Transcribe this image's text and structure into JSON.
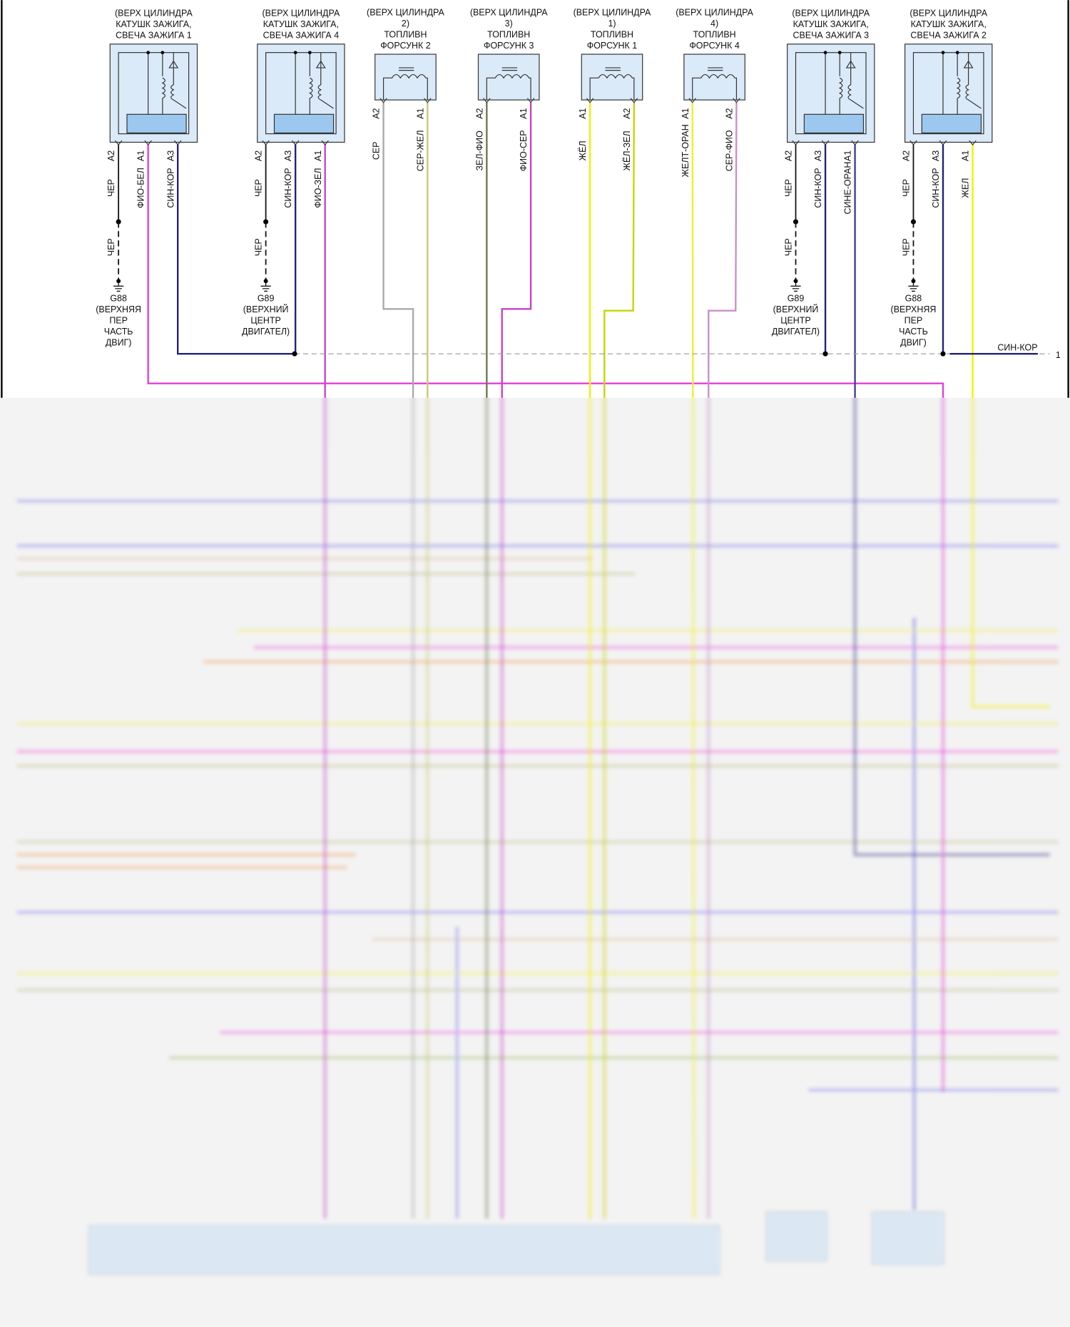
{
  "components": [
    {
      "kind": "coil",
      "title": [
        "(ВЕРХ ЦИЛИНДРА",
        "КАТУШК ЗАЖИГА,",
        "СВЕЧА ЗАЖИГА 1"
      ],
      "pins": [
        {
          "pin": "A2",
          "wire": "ЧЕР",
          "color": "#111111"
        },
        {
          "pin": "A1",
          "wire": "ФИО-БЕЛ",
          "color": "#e040d8"
        },
        {
          "pin": "A3",
          "wire": "СИН-КОР",
          "color": "#22227a"
        }
      ]
    },
    {
      "kind": "coil",
      "title": [
        "(ВЕРХ ЦИЛИНДРА",
        "КАТУШК ЗАЖИГА,",
        "СВЕЧА ЗАЖИГА 4"
      ],
      "pins": [
        {
          "pin": "A2",
          "wire": "ЧЕР",
          "color": "#111111"
        },
        {
          "pin": "A3",
          "wire": "СИН-КОР",
          "color": "#22227a"
        },
        {
          "pin": "A1",
          "wire": "ФИО-ЗЕЛ",
          "color": "#c048c8"
        }
      ]
    },
    {
      "kind": "injector",
      "title": [
        "(ВЕРХ ЦИЛИНДРА",
        "2)",
        "ТОПЛИВН",
        "ФОРСУНК 2"
      ],
      "pins": [
        {
          "pin": "A2",
          "wire": "СЕР",
          "color": "#aaaaaa"
        },
        {
          "pin": "A1",
          "wire": "СЕР-ЖЕЛ",
          "color": "#c8c878"
        }
      ]
    },
    {
      "kind": "injector",
      "title": [
        "(ВЕРХ ЦИЛИНДРА",
        "3)",
        "ТОПЛИВН",
        "ФОРСУНК 3"
      ],
      "pins": [
        {
          "pin": "A2",
          "wire": "ЗЕЛ-ФИО",
          "color": "#6a7a50"
        },
        {
          "pin": "A1",
          "wire": "ФИО-СЕР",
          "color": "#c840c8"
        }
      ]
    },
    {
      "kind": "injector",
      "title": [
        "(ВЕРХ ЦИЛИНДРА",
        "1)",
        "ТОПЛИВН",
        "ФОРСУНК 1"
      ],
      "pins": [
        {
          "pin": "A1",
          "wire": "ЖЁЛ",
          "color": "#f0f000"
        },
        {
          "pin": "A2",
          "wire": "ЖЁЛ-ЗЕЛ",
          "color": "#c8d400"
        }
      ]
    },
    {
      "kind": "injector",
      "title": [
        "(ВЕРХ ЦИЛИНДРА",
        "4)",
        "ТОПЛИВН",
        "ФОРСУНК 4"
      ],
      "pins": [
        {
          "pin": "A1",
          "wire": "ЖЕЛТ-ОРАН",
          "color": "#eeee30"
        },
        {
          "pin": "A2",
          "wire": "СЕР-ФИО",
          "color": "#c890c8"
        }
      ]
    },
    {
      "kind": "coil",
      "title": [
        "(ВЕРХ ЦИЛИНДРА",
        "КАТУШК ЗАЖИГА,",
        "СВЕЧА ЗАЖИГА 3"
      ],
      "pins": [
        {
          "pin": "A2",
          "wire": "ЧЕР",
          "color": "#111111"
        },
        {
          "pin": "A3",
          "wire": "СИН-КОР",
          "color": "#22227a"
        },
        {
          "pin": "A1",
          "wire": "СИНЕ-ОРАН",
          "color": "#404090"
        }
      ]
    },
    {
      "kind": "coil",
      "title": [
        "(ВЕРХ ЦИЛИНДРА",
        "КАТУШК ЗАЖИГА,",
        "СВЕЧА ЗАЖИГА 2"
      ],
      "pins": [
        {
          "pin": "A2",
          "wire": "ЧЕР",
          "color": "#111111"
        },
        {
          "pin": "A3",
          "wire": "СИН-КОР",
          "color": "#22227a"
        },
        {
          "pin": "A1",
          "wire": "ЖЕЛ",
          "color": "#f0f000"
        }
      ]
    }
  ],
  "grounds": [
    {
      "wire": "ЧЕР",
      "name": "G88",
      "location": [
        "(ВЕРХНЯЯ",
        "ПЕР",
        "ЧАСТЬ",
        "ДВИГ)"
      ]
    },
    {
      "wire": "ЧЕР",
      "name": "G89",
      "location": [
        "(ВЕРХНИЙ",
        "ЦЕНТР",
        "ДВИГАТЕЛ)"
      ]
    },
    {
      "wire": "ЧЕР",
      "name": "G89",
      "location": [
        "(ВЕРХНИЙ",
        "ЦЕНТР",
        "ДВИГАТЕЛ)"
      ]
    },
    {
      "wire": "ЧЕР",
      "name": "G88",
      "location": [
        "(ВЕРХНЯЯ",
        "ПЕР",
        "ЧАСТЬ",
        "ДВИГ)"
      ]
    }
  ],
  "splice": {
    "wire": "СИН-КОР",
    "connector": "1"
  }
}
